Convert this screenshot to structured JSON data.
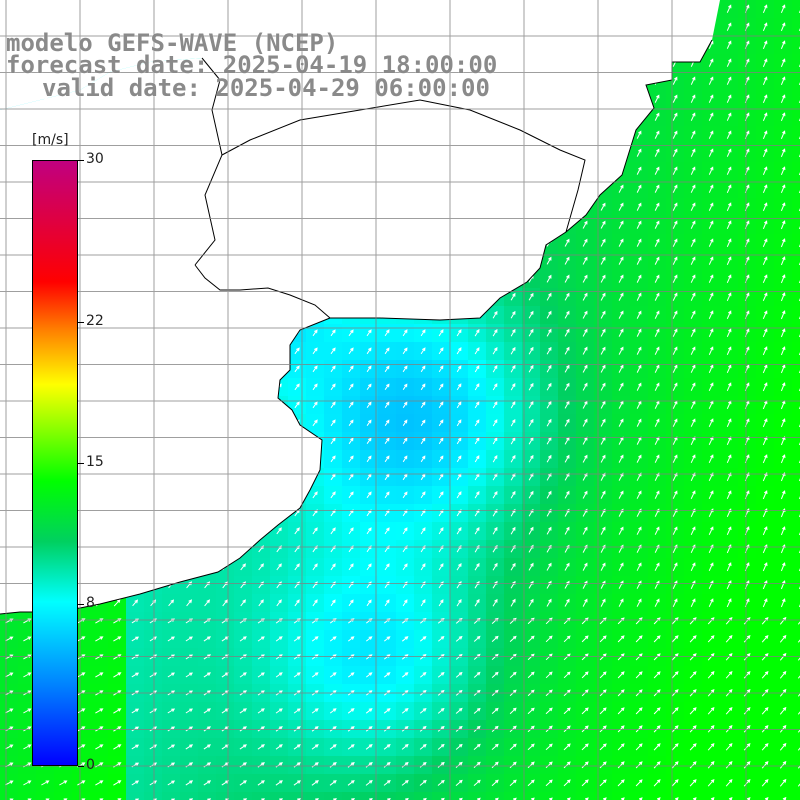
{
  "title": {
    "line1": "modelo GEFS-WAVE (NCEP)",
    "line2": "forecast date: 2025-04-19 18:00:00",
    "line3": "valid date: 2025-04-29 06:00:00"
  },
  "colorbar": {
    "unit": "[m/s]",
    "ticks": [
      "30",
      "22",
      "15",
      "8",
      "0"
    ],
    "tick_values": [
      30,
      22,
      15,
      8,
      0
    ],
    "min": 0,
    "max": 30,
    "colors": [
      "#0000ff",
      "#0080ff",
      "#00ffff",
      "#00d060",
      "#00ff00",
      "#80ff00",
      "#ffff00",
      "#ff8000",
      "#ff0000",
      "#c00080"
    ]
  },
  "map": {
    "variable": "wind speed",
    "grid": true,
    "land_color": "#ffffff",
    "coastline_color": "#000000",
    "grid_color": "#808080"
  }
}
